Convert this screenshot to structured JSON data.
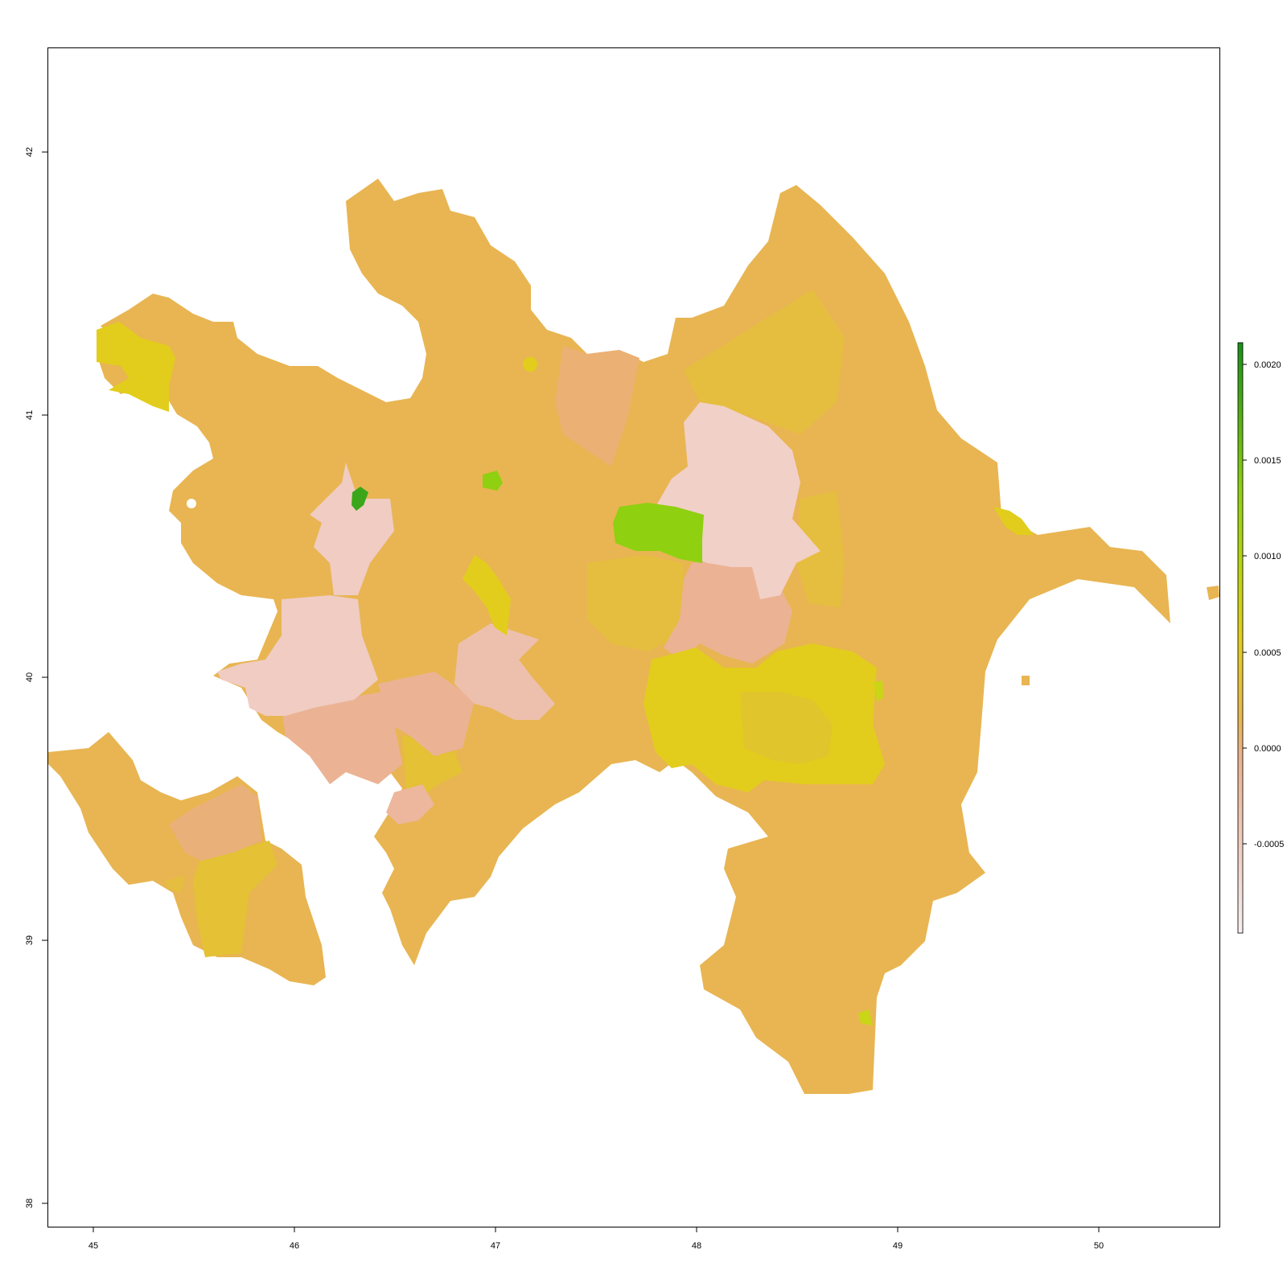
{
  "map": {
    "x_axis": {
      "ticks": [
        "45",
        "46",
        "47",
        "48",
        "49",
        "50"
      ]
    },
    "y_axis": {
      "ticks": [
        "38",
        "39",
        "40",
        "41",
        "42"
      ]
    },
    "legend": {
      "ticks": [
        "0.0020",
        "0.0015",
        "0.0010",
        "0.0005",
        "0.0000",
        "-0.0005"
      ],
      "range": [
        -0.0009,
        0.0021
      ],
      "colors": [
        "#f6efef",
        "#ebb18e",
        "#e8b552",
        "#e2cd1c",
        "#8fd010",
        "#1a8f1a"
      ]
    },
    "colors": {
      "base": "#e8b552",
      "pink": "#ebb18e",
      "pale": "#f0cfc6",
      "yellow": "#e2cd1c",
      "lime": "#8fd010",
      "green": "#2f9a1a"
    }
  }
}
